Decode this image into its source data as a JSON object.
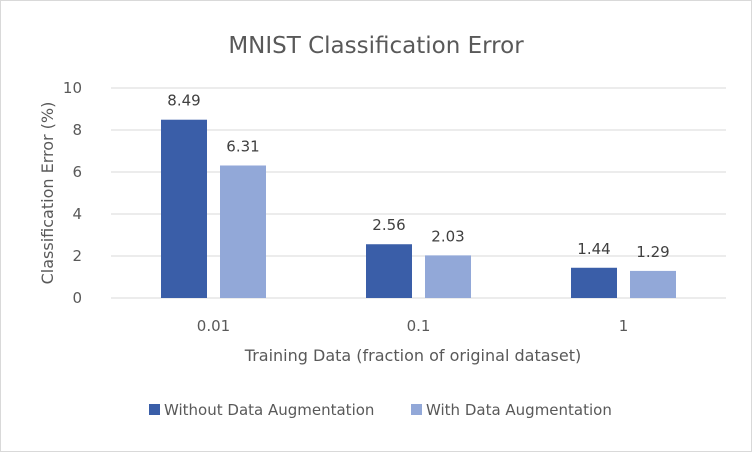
{
  "chart_data": {
    "type": "bar",
    "title": "MNIST Classification Error",
    "xlabel": "Training Data (fraction of original dataset)",
    "ylabel": "Classification Error (%)",
    "categories": [
      "0.01",
      "0.1",
      "1"
    ],
    "ylim": [
      0,
      10
    ],
    "yticks": [
      "0",
      "2",
      "4",
      "6",
      "8",
      "10"
    ],
    "grid": true,
    "legend_position": "bottom",
    "series": [
      {
        "name": "Without Data Augmentation",
        "color": "#3a5ea8",
        "values": [
          8.49,
          2.56,
          1.44
        ],
        "labels": [
          "8.49",
          "2.56",
          "1.44"
        ]
      },
      {
        "name": "With Data Augmentation",
        "color": "#92a8d8",
        "values": [
          6.31,
          2.03,
          1.29
        ],
        "labels": [
          "6.31",
          "2.03",
          "1.29"
        ]
      }
    ]
  }
}
